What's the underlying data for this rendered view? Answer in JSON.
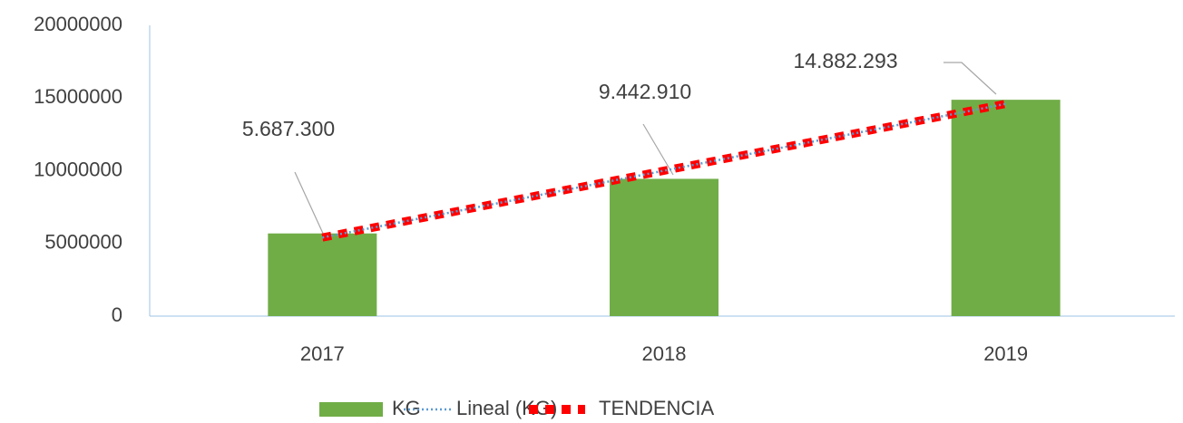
{
  "chart_data": {
    "type": "bar",
    "categories": [
      "2017",
      "2018",
      "2019"
    ],
    "series": [
      {
        "name": "KG",
        "type": "bar",
        "color": "#70ad47",
        "values": [
          5687300,
          9442910,
          14882293
        ],
        "value_labels": [
          "5.687.300",
          "9.442.910",
          "14.882.293"
        ]
      },
      {
        "name": "Lineal (KG)",
        "type": "line",
        "dash": "dotted",
        "color": "#5b9bd5",
        "values": [
          5406671,
          10004168,
          14601664
        ]
      },
      {
        "name": "TENDENCIA",
        "type": "line",
        "dash": "dashed",
        "color": "#ff0000",
        "values": [
          5406671,
          10004168,
          14601664
        ]
      }
    ],
    "ylim": [
      0,
      20000000
    ],
    "yticks": [
      0,
      5000000,
      10000000,
      15000000,
      20000000
    ],
    "grid": false,
    "legend": "bottom"
  }
}
